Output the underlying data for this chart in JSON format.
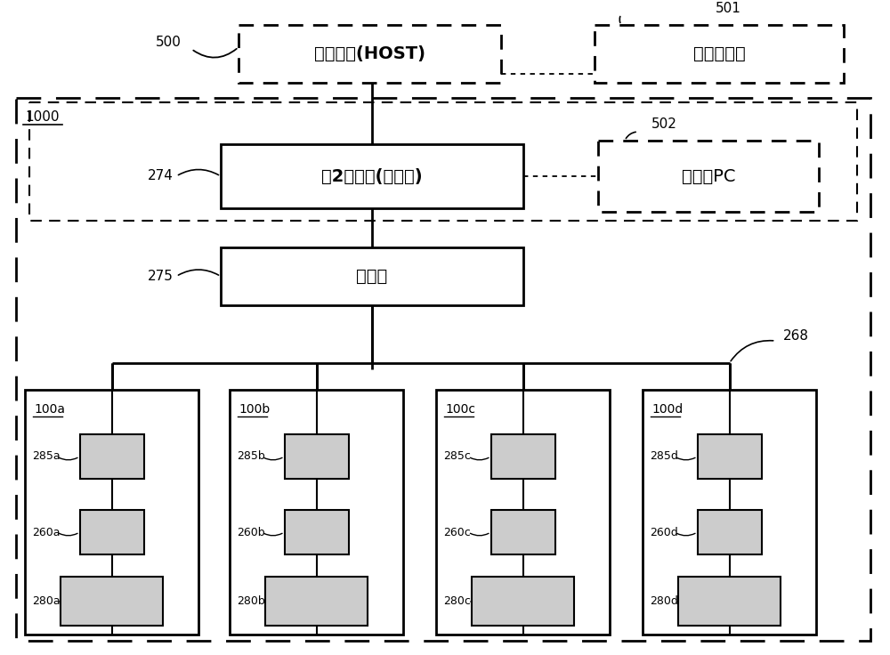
{
  "bg_color": "#ffffff",
  "line_color": "#000000",
  "box_fill": "#cccccc",
  "figsize": [
    10.0,
    7.36
  ],
  "dpi": 100,
  "labels": {
    "host": "上级装置(HOST)",
    "analysis": "解析服务器",
    "control": "第2控制部(操作部)",
    "relay": "中继部",
    "maintenance": "保养用PC",
    "ref_500": "500",
    "ref_501": "501",
    "ref_502": "502",
    "ref_274": "274",
    "ref_275": "275",
    "ref_268": "268",
    "ref_1000": "1000",
    "units_a": [
      "100a",
      "285a",
      "260a",
      "280a"
    ],
    "units_b": [
      "100b",
      "285b",
      "260b",
      "280b"
    ],
    "units_c": [
      "100c",
      "285c",
      "260c",
      "280c"
    ],
    "units_d": [
      "100d",
      "285d",
      "260d",
      "280d"
    ]
  }
}
